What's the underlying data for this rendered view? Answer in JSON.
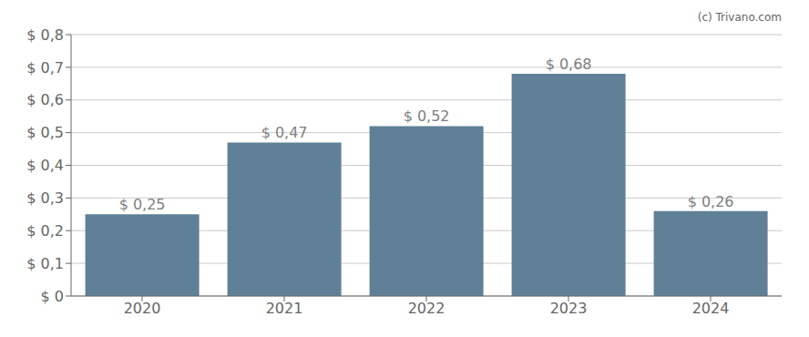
{
  "chart_data": {
    "type": "bar",
    "categories": [
      "2020",
      "2021",
      "2022",
      "2023",
      "2024"
    ],
    "values": [
      0.25,
      0.47,
      0.52,
      0.68,
      0.26
    ],
    "value_labels": [
      "$ 0,25",
      "$ 0,47",
      "$ 0,52",
      "$ 0,68",
      "$ 0,26"
    ],
    "data_labels": true,
    "color": "#5f8096",
    "ylim": [
      0,
      0.8
    ],
    "yticks": [
      {
        "value": 0,
        "label": "$ 0"
      },
      {
        "value": 0.1,
        "label": "$ 0,1"
      },
      {
        "value": 0.2,
        "label": "$ 0,2"
      },
      {
        "value": 0.3,
        "label": "$ 0,3"
      },
      {
        "value": 0.4,
        "label": "$ 0,4"
      },
      {
        "value": 0.5,
        "label": "$ 0,5"
      },
      {
        "value": 0.6,
        "label": "$ 0,6"
      },
      {
        "value": 0.7,
        "label": "$ 0,7"
      },
      {
        "value": 0.8,
        "label": "$ 0,8"
      }
    ],
    "grid": true,
    "annotations": [
      "(c) Trivano.com"
    ]
  }
}
